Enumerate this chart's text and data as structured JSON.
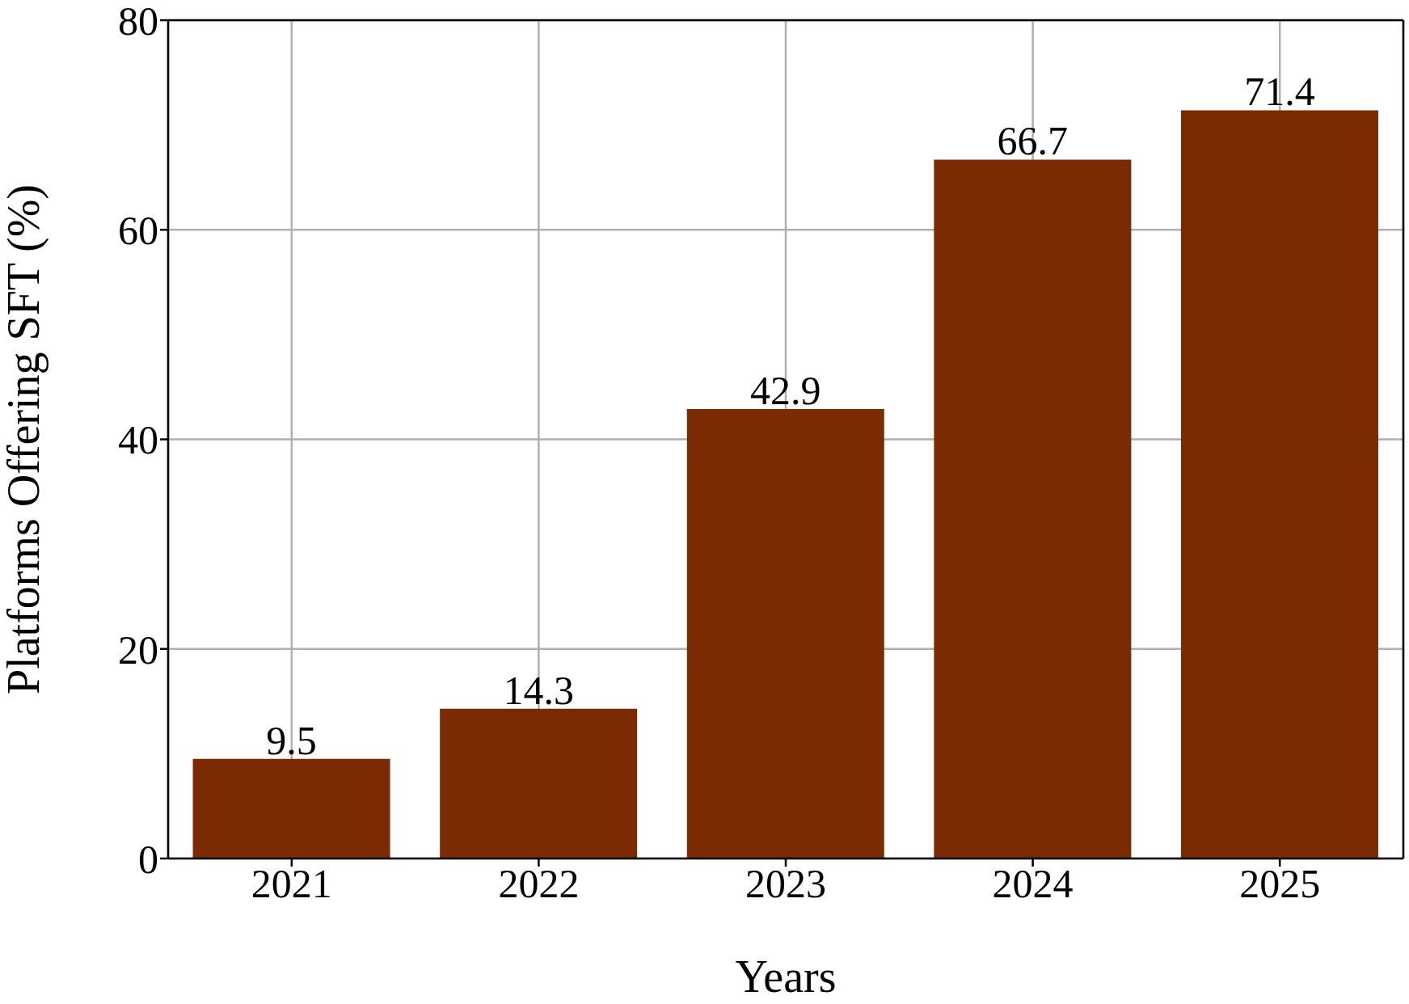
{
  "chart_data": {
    "type": "bar",
    "xlabel": "Years",
    "ylabel": "Platforms Offering SFT (%)",
    "categories": [
      "2021",
      "2022",
      "2023",
      "2024",
      "2025"
    ],
    "values": [
      9.5,
      14.3,
      42.9,
      66.7,
      71.4
    ],
    "color": "#7b2b02",
    "ylim": [
      0,
      80
    ],
    "yticks": [
      0,
      20,
      40,
      60,
      80
    ],
    "grid": true,
    "data_labels": true
  }
}
